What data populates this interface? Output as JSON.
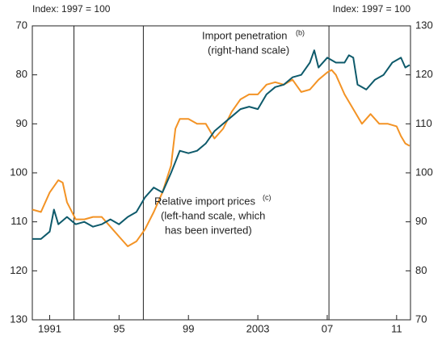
{
  "chart_data": {
    "type": "line",
    "y_label": "Index: 1997 = 100",
    "y2_label": "Index: 1997 = 100",
    "xlim": [
      1990,
      2011.8
    ],
    "xticks": [
      1991,
      {
        "value": 1995,
        "label": "95"
      },
      {
        "value": 1999,
        "label": "99"
      },
      2003,
      {
        "value": 2007,
        "label": "07"
      },
      {
        "value": 2011,
        "label": "11"
      }
    ],
    "ylim": [
      130,
      70
    ],
    "yticks": [
      70,
      80,
      90,
      100,
      110,
      120,
      130
    ],
    "y2lim": [
      70,
      130
    ],
    "y2ticks": [
      70,
      80,
      90,
      100,
      110,
      120,
      130
    ],
    "vlines": [
      1992.4,
      1996.4,
      2007.1
    ],
    "series": [
      {
        "name": "Relative import prices",
        "note": "(c)",
        "color": "#f39325",
        "x": [
          1990.0,
          1990.5,
          1991.0,
          1991.5,
          1991.75,
          1992.0,
          1992.5,
          1993.0,
          1993.5,
          1994.0,
          1994.5,
          1995.0,
          1995.5,
          1996.0,
          1996.5,
          1997.0,
          1997.5,
          1998.0,
          1998.25,
          1998.5,
          1999.0,
          1999.5,
          2000.0,
          2000.5,
          2001.0,
          2001.5,
          2002.0,
          2002.5,
          2003.0,
          2003.5,
          2004.0,
          2004.5,
          2005.0,
          2005.5,
          2006.0,
          2006.5,
          2007.0,
          2007.25,
          2007.5,
          2008.0,
          2008.5,
          2009.0,
          2009.5,
          2010.0,
          2010.5,
          2011.0,
          2011.25,
          2011.5,
          2011.75
        ],
        "values": [
          107.5,
          108,
          104,
          101.5,
          102,
          106,
          109.5,
          109.5,
          109,
          109,
          111,
          113,
          115,
          114,
          111.5,
          108,
          104,
          98.5,
          91,
          89,
          89,
          90,
          90,
          93,
          91,
          87.5,
          85,
          84,
          84,
          82,
          81.5,
          82,
          81,
          83.5,
          83,
          81,
          79.5,
          79,
          80,
          84,
          87,
          90,
          88,
          90,
          90,
          90.5,
          92.5,
          94,
          94.5
        ]
      },
      {
        "name": "Import penetration",
        "note": "(b)",
        "color": "#0e5a6b",
        "axis": "y2",
        "x": [
          1990.0,
          1990.5,
          1991.0,
          1991.25,
          1991.5,
          1992.0,
          1992.5,
          1993.0,
          1993.5,
          1994.0,
          1994.5,
          1995.0,
          1995.5,
          1996.0,
          1996.5,
          1997.0,
          1997.5,
          1998.0,
          1998.5,
          1999.0,
          1999.5,
          2000.0,
          2000.5,
          2001.0,
          2001.5,
          2002.0,
          2002.5,
          2003.0,
          2003.5,
          2004.0,
          2004.5,
          2005.0,
          2005.5,
          2006.0,
          2006.25,
          2006.5,
          2007.0,
          2007.5,
          2008.0,
          2008.25,
          2008.5,
          2008.75,
          2009.25,
          2009.75,
          2010.25,
          2010.75,
          2011.25,
          2011.5,
          2011.75
        ],
        "values": [
          86.5,
          86.5,
          88,
          92.5,
          89.5,
          91,
          89.5,
          90,
          89,
          89.5,
          90.5,
          89.5,
          91,
          92,
          95,
          97,
          96,
          100,
          104.5,
          104,
          104.5,
          106,
          108.5,
          110,
          111.5,
          113,
          113.5,
          113,
          116,
          117.5,
          118,
          119.5,
          120,
          122.5,
          125,
          121.5,
          123.5,
          122.5,
          122.5,
          124,
          123.5,
          118,
          117,
          119,
          120,
          122.5,
          123.5,
          121.5,
          122
        ]
      }
    ],
    "annotations": [
      "(right-hand scale)",
      "(left-hand scale, which",
      "has been inverted)"
    ]
  }
}
